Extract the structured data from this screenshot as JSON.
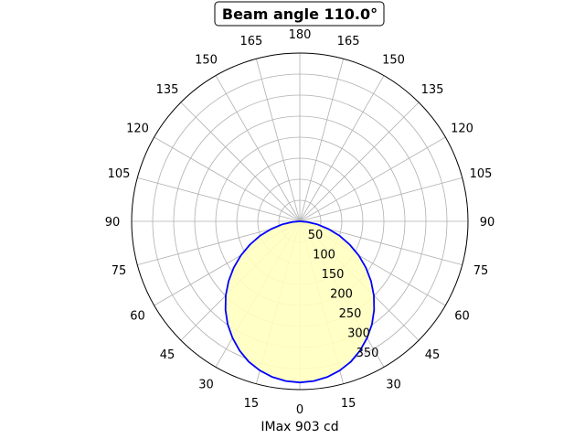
{
  "chart_data": {
    "type": "line",
    "polar": true,
    "title": "Beam angle 110.0°",
    "xlabel": "IMax 903 cd",
    "theta_tick_labels": [
      "0",
      "15",
      "30",
      "45",
      "60",
      "75",
      "90",
      "105",
      "120",
      "135",
      "150",
      "165",
      "180"
    ],
    "theta_direction": "0 at bottom, symmetric on both sides up to 180 at top",
    "r_tick_labels": [
      "50",
      "100",
      "150",
      "200",
      "250",
      "300",
      "350"
    ],
    "r_ticks": [
      50,
      100,
      150,
      200,
      250,
      300,
      350
    ],
    "rlim": [
      0,
      400
    ],
    "grid": true,
    "series": [
      {
        "angles_deg": [
          0,
          5,
          10,
          15,
          20,
          25,
          30,
          35,
          40,
          45,
          50,
          55,
          60,
          65,
          70,
          75,
          80,
          85,
          90
        ],
        "values": [
          383,
          381,
          376,
          367,
          355,
          339,
          320,
          299,
          275,
          249,
          221,
          192,
          162,
          131,
          101,
          71,
          43,
          18,
          0
        ],
        "symmetric": true,
        "line_color": "#0000ff",
        "fill_color": "#ffffc0"
      }
    ]
  }
}
